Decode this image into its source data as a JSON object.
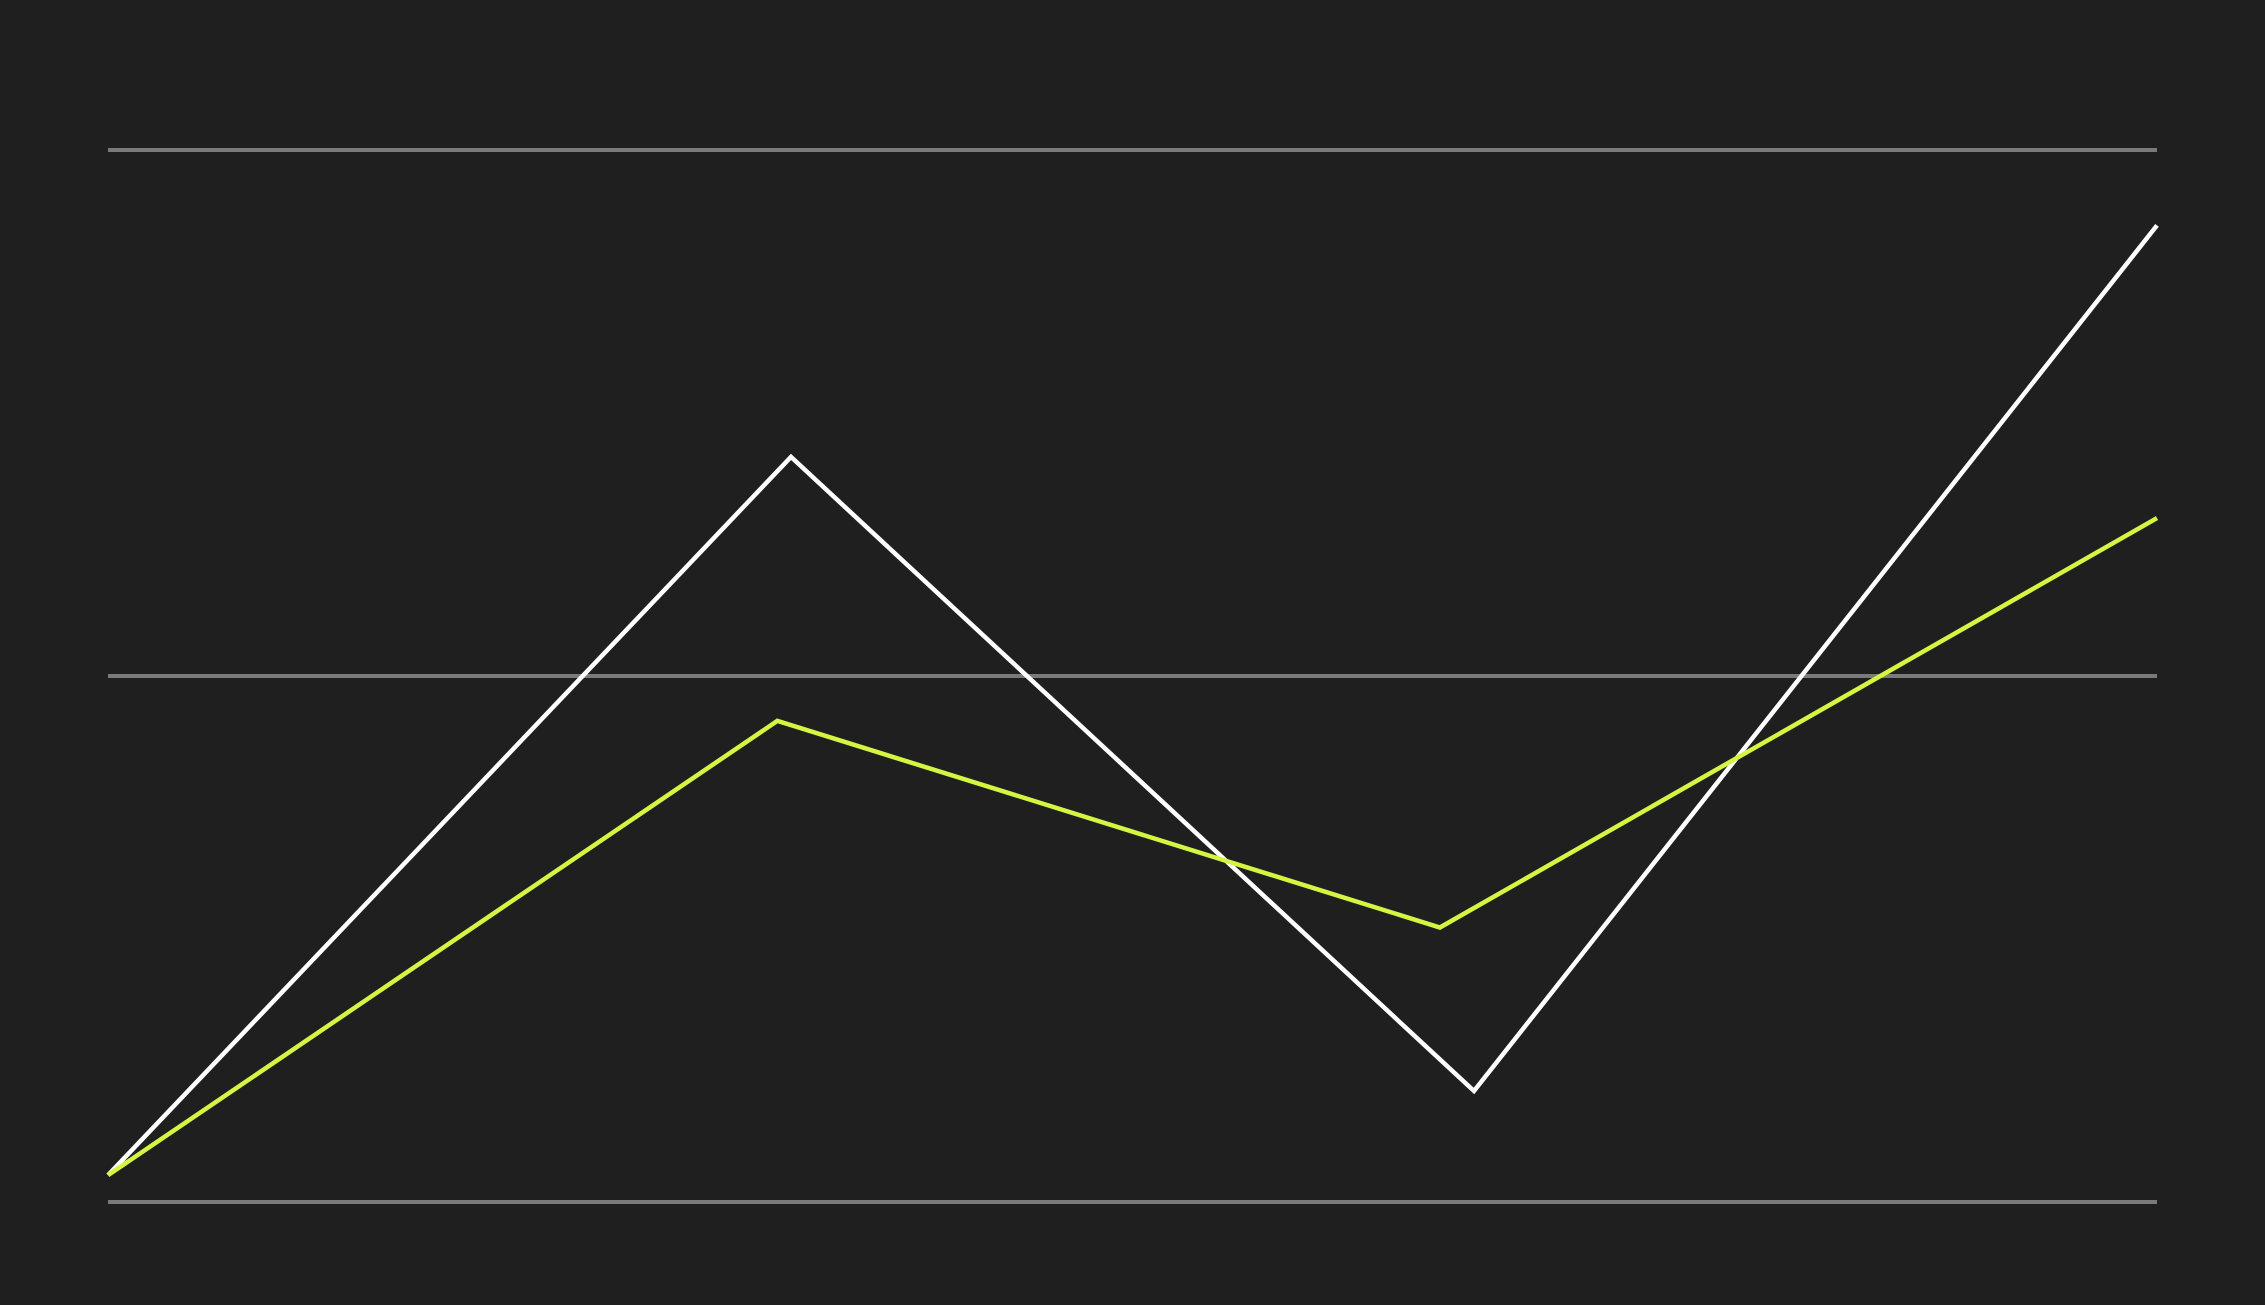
{
  "chart_data": {
    "type": "line",
    "x": [
      0,
      1,
      2,
      3
    ],
    "ylim": [
      -5,
      110
    ],
    "grid": true,
    "gridlines": [
      -5,
      50,
      105
    ],
    "series": [
      {
        "color": "#ffffff",
        "points": [
          {
            "x": 0,
            "y": -2.2
          },
          {
            "x": 1,
            "y": 72.9
          },
          {
            "x": 2,
            "y": 6.6
          },
          {
            "x": 3,
            "y": 97.1
          }
        ]
      },
      {
        "color": "#d4f542",
        "points": [
          {
            "x": 0,
            "y": -2.2
          },
          {
            "x": 0.98,
            "y": 45.3
          },
          {
            "x": 1.95,
            "y": 23.7
          },
          {
            "x": 3,
            "y": 66.5
          }
        ]
      }
    ]
  }
}
